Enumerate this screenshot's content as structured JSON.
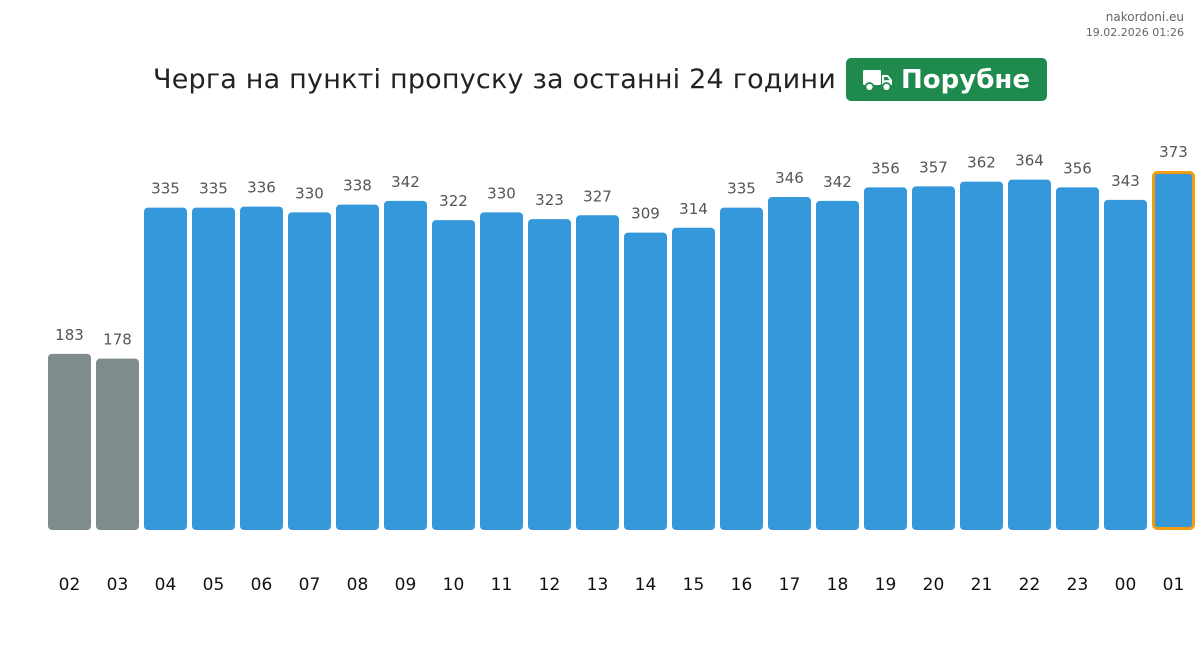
{
  "source": {
    "site": "nakordoni.eu",
    "timestamp": "19.02.2026 01:26"
  },
  "header": {
    "title": "Черга на пункті пропуску за останні 24 години",
    "checkpoint": {
      "label": "Порубне",
      "icon": "truck-icon",
      "color": "#1e8a4e"
    }
  },
  "chart_data": {
    "type": "bar",
    "title": "Черга на пункті пропуску за останні 24 години",
    "xlabel": "",
    "ylabel": "",
    "grid": false,
    "legend": "none",
    "ylim": [
      0,
      373
    ],
    "categories": [
      "02",
      "03",
      "04",
      "05",
      "06",
      "07",
      "08",
      "09",
      "10",
      "11",
      "12",
      "13",
      "14",
      "15",
      "16",
      "17",
      "18",
      "19",
      "20",
      "21",
      "22",
      "23",
      "00",
      "01"
    ],
    "values": [
      183,
      178,
      335,
      335,
      336,
      330,
      338,
      342,
      322,
      330,
      323,
      327,
      309,
      314,
      335,
      346,
      342,
      356,
      357,
      362,
      364,
      356,
      343,
      373
    ],
    "colors": {
      "gray": "#7f8c8d",
      "blue": "#3498db",
      "highlight_border": "#f39c12"
    },
    "gray_indices": [
      0,
      1
    ],
    "highlight_index": 23
  }
}
